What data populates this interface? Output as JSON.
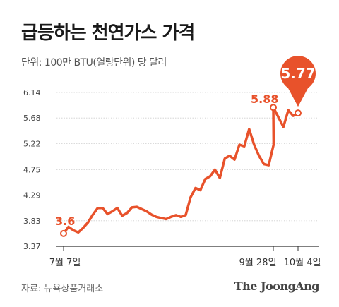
{
  "header": {
    "title": "급등하는 천연가스 가격",
    "unit": "단위: 100만 BTU(열량단위) 당 달러"
  },
  "footer": {
    "source": "자료: 뉴욕상품거래소",
    "brand": "The JoongAng"
  },
  "colors": {
    "line": "#e8522b",
    "callout": "#e8522b",
    "grid": "#cfcfcf",
    "axis": "#333333"
  },
  "chart_data": {
    "type": "line",
    "title": "급등하는 천연가스 가격",
    "ylabel": "단위: 100만 BTU(열량단위) 당 달러",
    "ylim": [
      3.37,
      6.14
    ],
    "yticks": [
      "6.14",
      "5.68",
      "5.22",
      "4.75",
      "4.29",
      "3.83",
      "3.37"
    ],
    "xticks": [
      "7월 7일",
      "9월 28일",
      "10월 4일"
    ],
    "grid": true,
    "annotations": [
      {
        "label": "3.6",
        "at": "7월 7일",
        "value": 3.6
      },
      {
        "label": "5.88",
        "at": "9월 28일",
        "value": 5.88
      },
      {
        "label": "5.77",
        "at": "10월 4일",
        "value": 5.77
      }
    ],
    "series": [
      {
        "values": [
          3.6,
          3.72,
          3.66,
          3.62,
          3.7,
          3.8,
          3.94,
          4.06,
          4.06,
          3.95,
          4.0,
          4.06,
          3.92,
          3.97,
          4.07,
          4.08,
          4.04,
          4.0,
          3.94,
          3.9,
          3.88,
          3.86,
          3.9,
          3.93,
          3.9,
          3.93,
          4.25,
          4.42,
          4.38,
          4.58,
          4.63,
          4.75,
          4.6,
          4.95,
          5.0,
          4.93,
          5.2,
          5.17,
          5.48,
          5.2,
          5.0,
          4.85,
          4.83,
          5.2,
          5.87,
          5.52,
          5.82,
          5.72,
          5.77
        ]
      }
    ]
  }
}
